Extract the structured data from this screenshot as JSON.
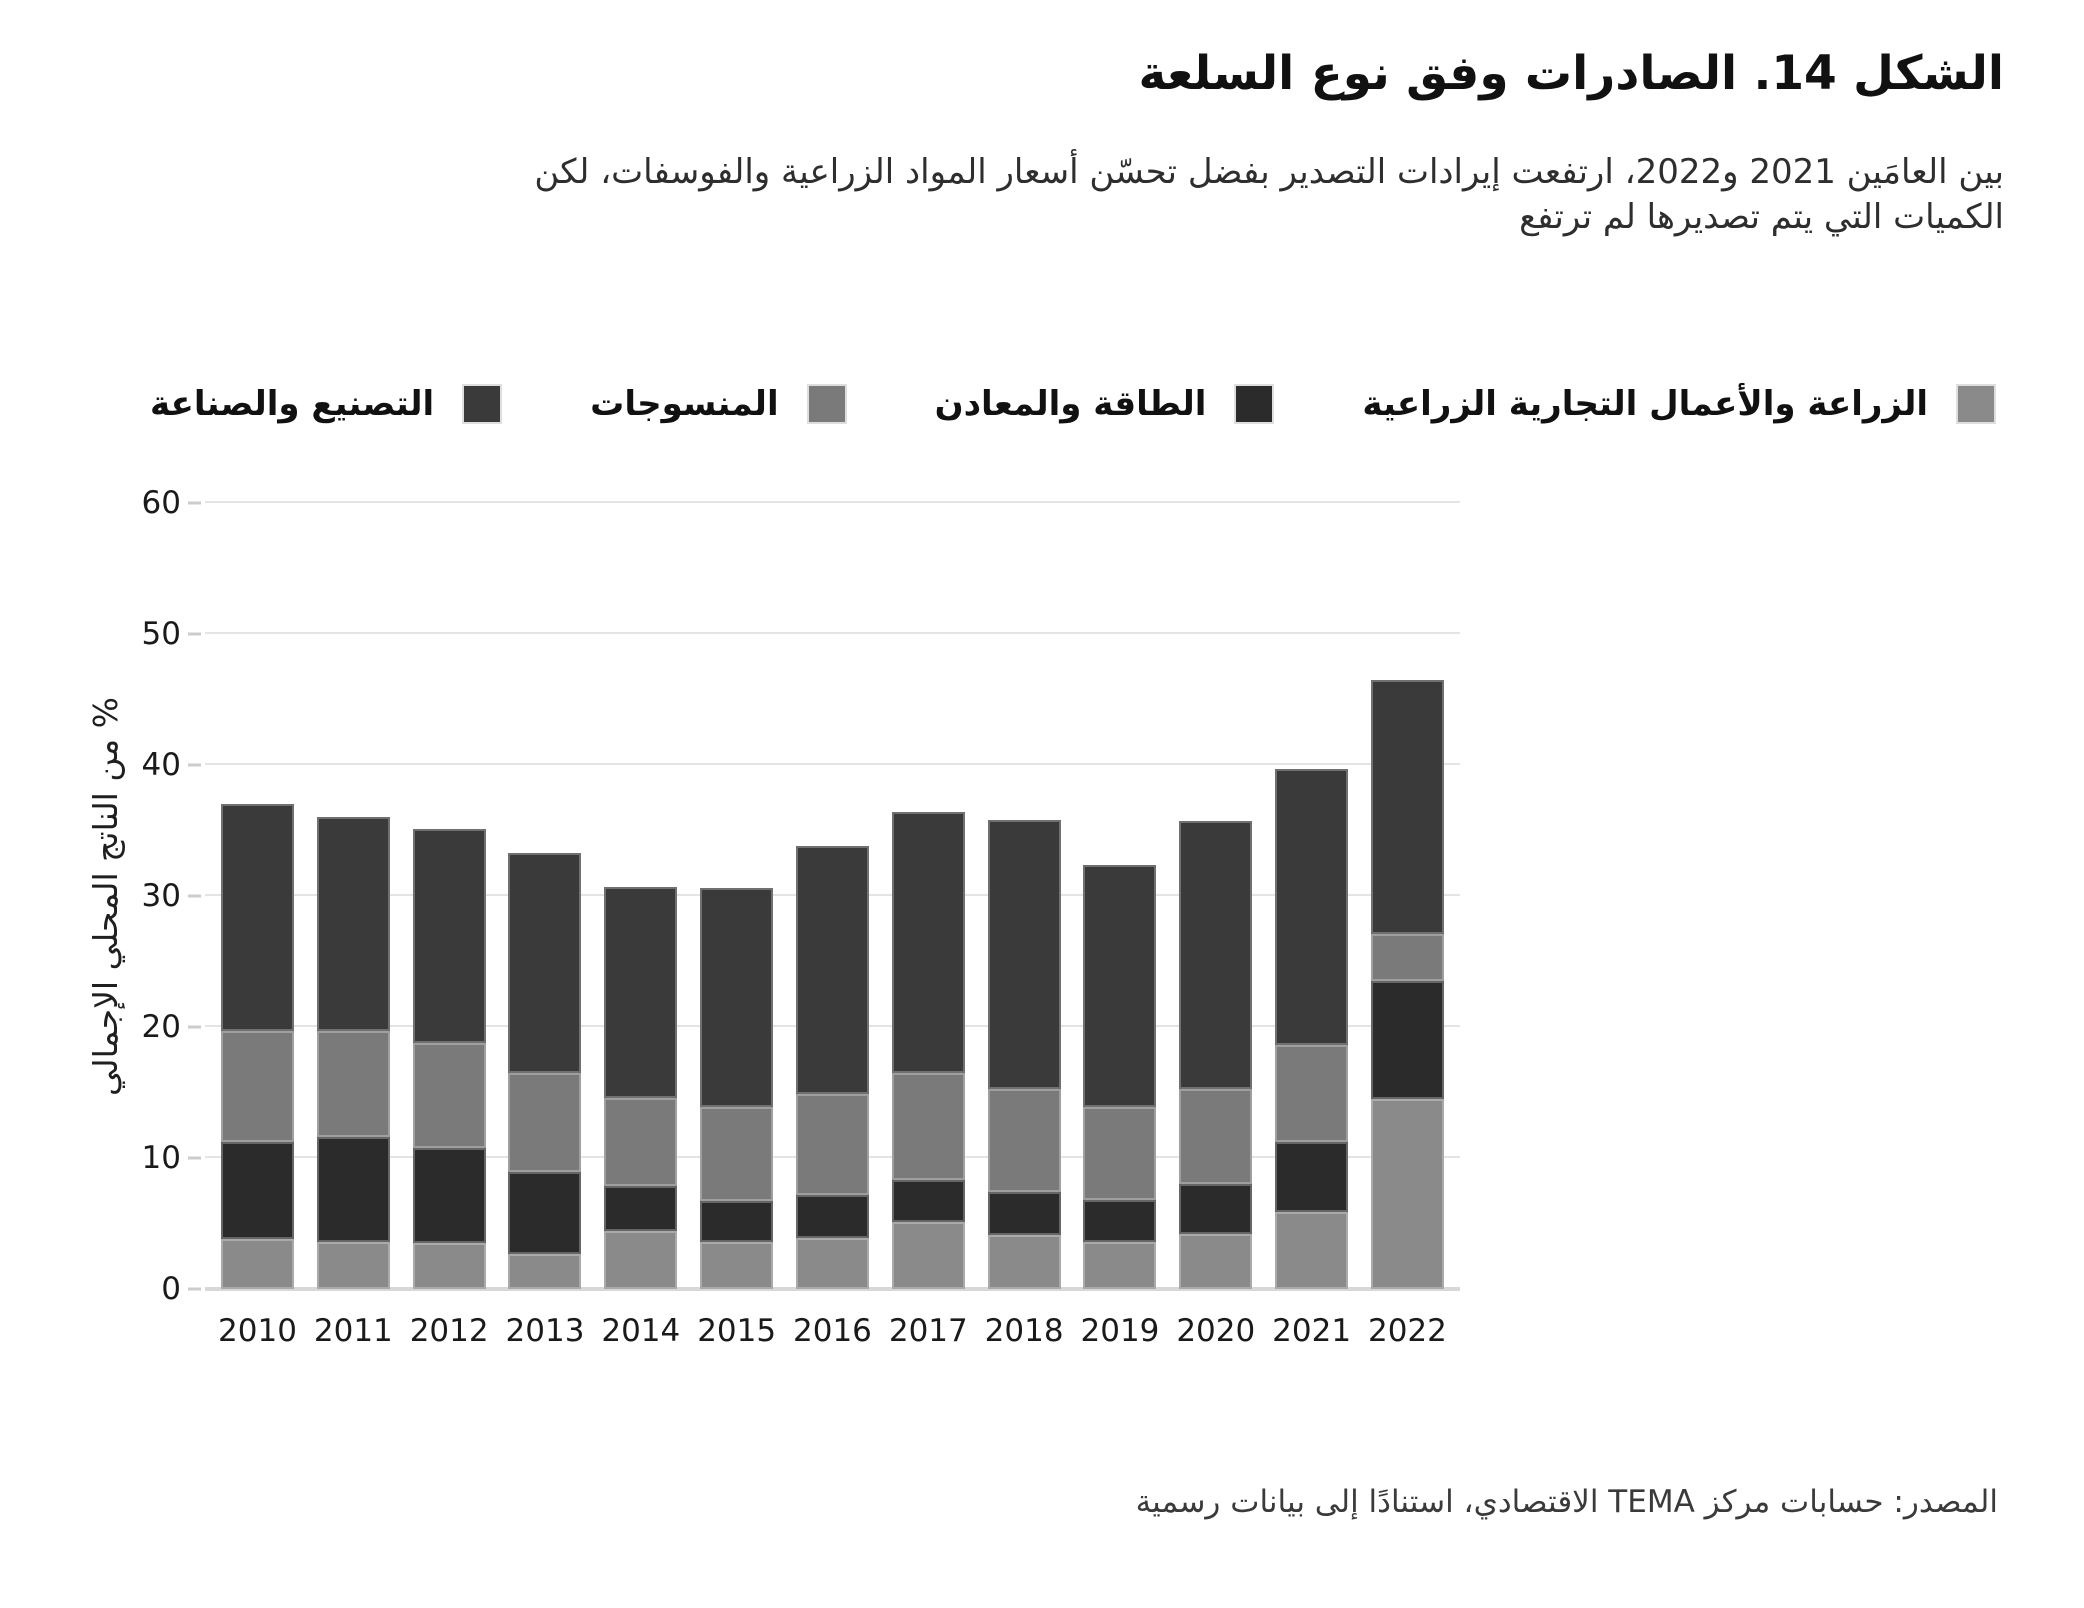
{
  "figure": {
    "title": "الشكل 14. الصادرات وفق نوع السلعة",
    "subtitle": "بين العامَين 2021 و2022، ارتفعت إيرادات التصدير بفضل تحسّن أسعار المواد الزراعية والفوسفات، لكن\nالكميات التي يتم تصديرها لم ترتفع",
    "source": "المصدر: حسابات مركز TEMA الاقتصادي، استنادًا إلى بيانات رسمية"
  },
  "colors": {
    "agriculture": "#8a8a8a",
    "energy": "#2b2b2b",
    "textiles": "#7a7a7a",
    "manufacturing": "#3a3a3a",
    "gridline": "#e4e4e4",
    "axis_line": "#d8d8d8"
  },
  "chart_data": {
    "type": "bar",
    "stacked": true,
    "title": "الشكل 14. الصادرات وفق نوع السلعة",
    "xlabel": "",
    "ylabel": "% من الناتج المحلي الإجمالي",
    "ylim": [
      0,
      60
    ],
    "yticks": [
      0,
      10,
      20,
      30,
      40,
      50,
      60
    ],
    "grid": "horizontal",
    "legend_position": "top",
    "categories": [
      "2010",
      "2011",
      "2012",
      "2013",
      "2014",
      "2015",
      "2016",
      "2017",
      "2018",
      "2019",
      "2020",
      "2021",
      "2022"
    ],
    "series": [
      {
        "key": "agriculture",
        "name": "الزراعة والأعمال التجارية الزراعية",
        "color": "#8a8a8a",
        "values": [
          3.8,
          3.6,
          3.5,
          2.7,
          4.4,
          3.6,
          3.9,
          5.1,
          4.1,
          3.6,
          4.2,
          5.9,
          14.5
        ]
      },
      {
        "key": "energy",
        "name": "الطاقة والمعادن",
        "color": "#2b2b2b",
        "values": [
          7.4,
          8.0,
          7.3,
          6.2,
          3.5,
          3.1,
          3.3,
          3.2,
          3.3,
          3.2,
          3.8,
          5.3,
          9.0
        ]
      },
      {
        "key": "textiles",
        "name": "المنسوجات",
        "color": "#7a7a7a",
        "values": [
          8.5,
          8.1,
          8.0,
          7.6,
          6.7,
          7.2,
          7.7,
          8.2,
          7.9,
          7.1,
          7.3,
          7.4,
          3.6
        ]
      },
      {
        "key": "manufacturing",
        "name": "التصنيع والصناعة",
        "color": "#3a3a3a",
        "values": [
          17.3,
          16.3,
          16.3,
          16.8,
          16.1,
          16.7,
          18.9,
          19.9,
          20.5,
          18.5,
          20.4,
          21.1,
          19.4
        ]
      }
    ]
  }
}
